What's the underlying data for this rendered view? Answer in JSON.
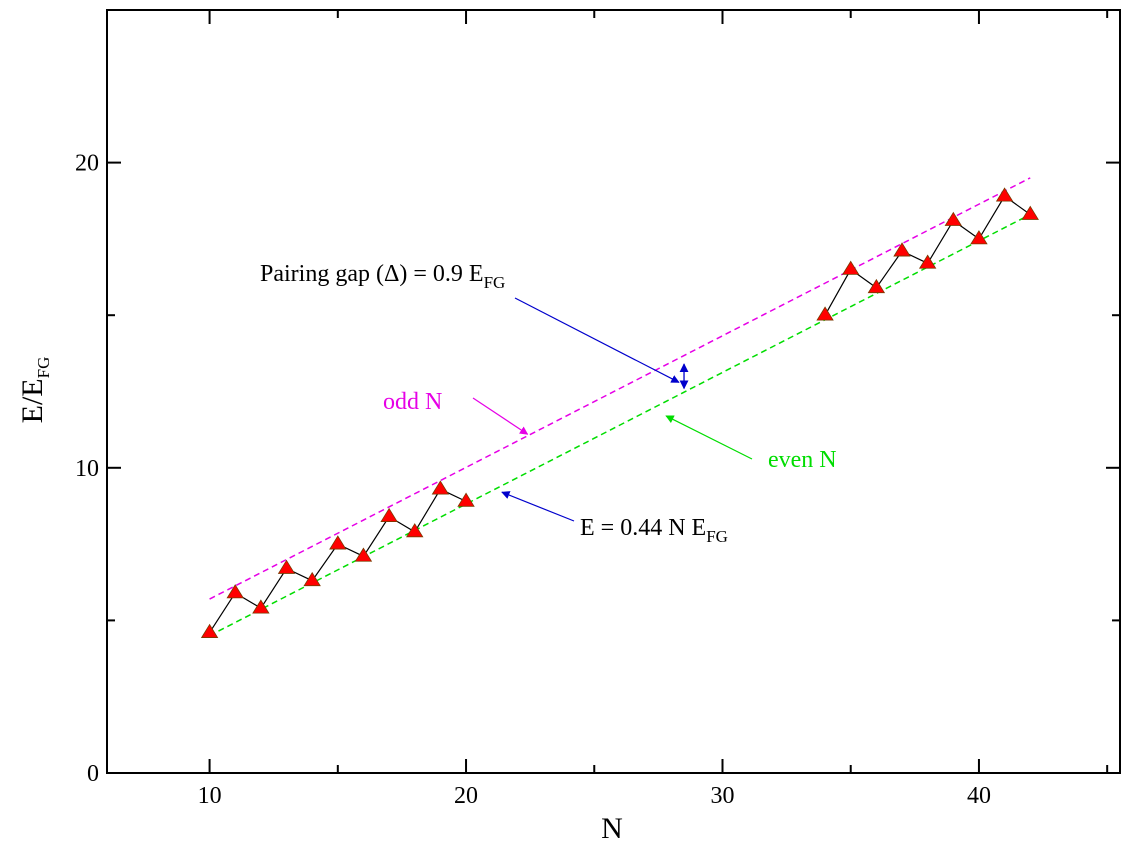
{
  "chart_data": {
    "type": "scatter",
    "title": "",
    "xlabel": "N",
    "ylabel": {
      "main": "E/E",
      "sub": "FG"
    },
    "xlim": [
      6,
      45.5
    ],
    "ylim": [
      0,
      25
    ],
    "x_ticks": [
      10,
      20,
      30,
      40
    ],
    "y_ticks": [
      0,
      10,
      20
    ],
    "x_tick_labels": [
      "10",
      "20",
      "30",
      "40"
    ],
    "y_tick_labels": [
      "0",
      "10",
      "20"
    ],
    "grid": false,
    "legend": "none",
    "series": [
      {
        "x": [
          10,
          11,
          12,
          13,
          14,
          15,
          16,
          17,
          18,
          19,
          20,
          34,
          35,
          36,
          37,
          38,
          39,
          40,
          41,
          42
        ],
        "y": [
          4.6,
          5.9,
          5.4,
          6.7,
          6.3,
          7.5,
          7.1,
          8.4,
          7.9,
          9.3,
          8.9,
          15.0,
          16.5,
          15.9,
          17.1,
          16.7,
          18.1,
          17.5,
          18.9,
          18.3
        ],
        "marker": "triangle",
        "marker_color": "#ff0000",
        "line_color": "#000000"
      }
    ],
    "fit_lines": [
      {
        "label": "odd N",
        "color": "#e600e6",
        "x": [
          10,
          42
        ],
        "y": [
          5.7,
          19.5
        ]
      },
      {
        "label": "even N",
        "color": "#00dd00",
        "x": [
          10,
          42
        ],
        "y": [
          4.5,
          18.3
        ]
      }
    ],
    "annotations": {
      "pairing_gap": {
        "text": "Pairing gap (Δ) = 0.9 E",
        "sub": "FG",
        "arrow_color": "#0000cc",
        "arrow_to": [
          28.3,
          12.8
        ]
      },
      "gap_marker": {
        "x": 28.5,
        "y": [
          12.6,
          13.4
        ],
        "color": "#0000cc"
      },
      "odd_label": {
        "text": "odd N",
        "color": "#e600e6",
        "arrow_to": [
          22.4,
          11.1
        ]
      },
      "even_label": {
        "text": "even N",
        "color": "#00dd00",
        "arrow_to": [
          27.8,
          11.7
        ]
      },
      "formula": {
        "text": "E = 0.44 N E",
        "sub": "FG",
        "arrow_color": "#0000cc",
        "arrow_to": [
          21.4,
          9.2
        ]
      }
    }
  }
}
